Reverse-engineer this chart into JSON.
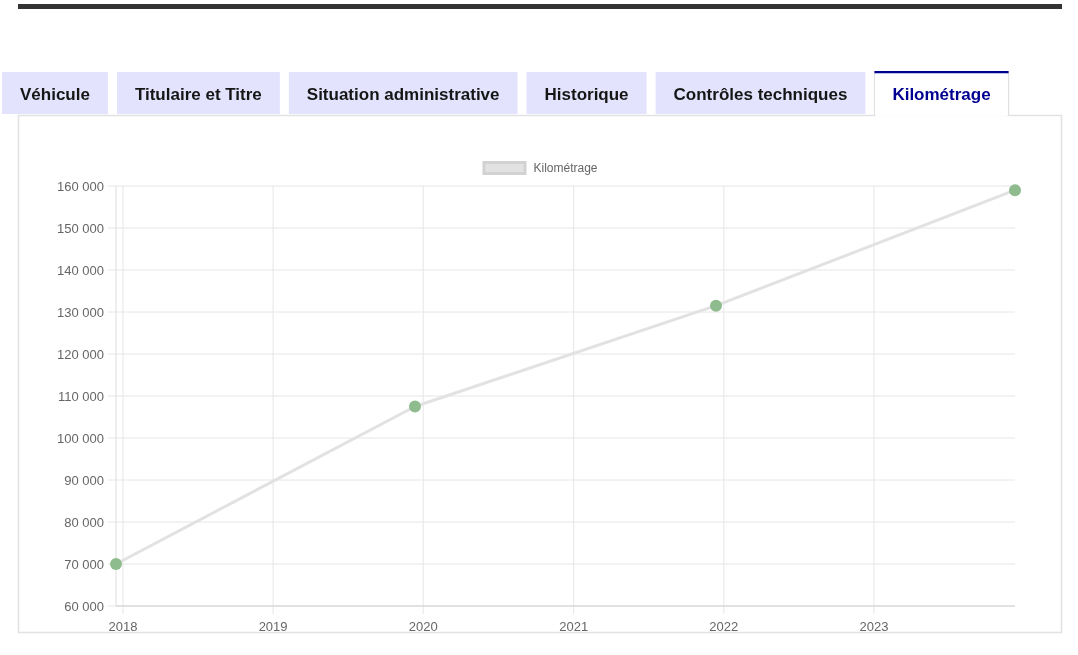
{
  "chart_data": {
    "type": "line",
    "title": "Kilométrage",
    "annotations": [
      "Véhicule",
      "Titulaire et Titre",
      "Situation administrative",
      "Historique",
      "Contrôles techniques"
    ],
    "x": [
      "2017-12-15",
      "2019-12-12",
      "2021-12-13",
      "2023-12-10"
    ],
    "series": [
      {
        "name": "Kilométrage",
        "color": "#e2e2e2",
        "colors": [
          "#8fbc8f",
          "#8fbc8f",
          "#8fbc8f",
          "#8fbc8f"
        ],
        "values": [
          70000,
          107500,
          131500,
          159000
        ]
      }
    ],
    "xlim": [
      "2017-12-15",
      "2023-12-10"
    ],
    "xticks": [
      "2018",
      "2019",
      "2020",
      "2021",
      "2022",
      "2023"
    ],
    "ylim": [
      60000,
      160000
    ],
    "yticks": [
      {
        "value": 60000,
        "label": "60 000"
      },
      {
        "value": 70000,
        "label": "70 000"
      },
      {
        "value": 80000,
        "label": "80 000"
      },
      {
        "value": 90000,
        "label": "90 000"
      },
      {
        "value": 100000,
        "label": "100 000"
      },
      {
        "value": 110000,
        "label": "110 000"
      },
      {
        "value": 120000,
        "label": "120 000"
      },
      {
        "value": 130000,
        "label": "130 000"
      },
      {
        "value": 140000,
        "label": "140 000"
      },
      {
        "value": 150000,
        "label": "150 000"
      },
      {
        "value": 160000,
        "label": "160 000"
      }
    ],
    "grid": true,
    "legend": "top",
    "marker": "circle",
    "line_style": "solid"
  }
}
